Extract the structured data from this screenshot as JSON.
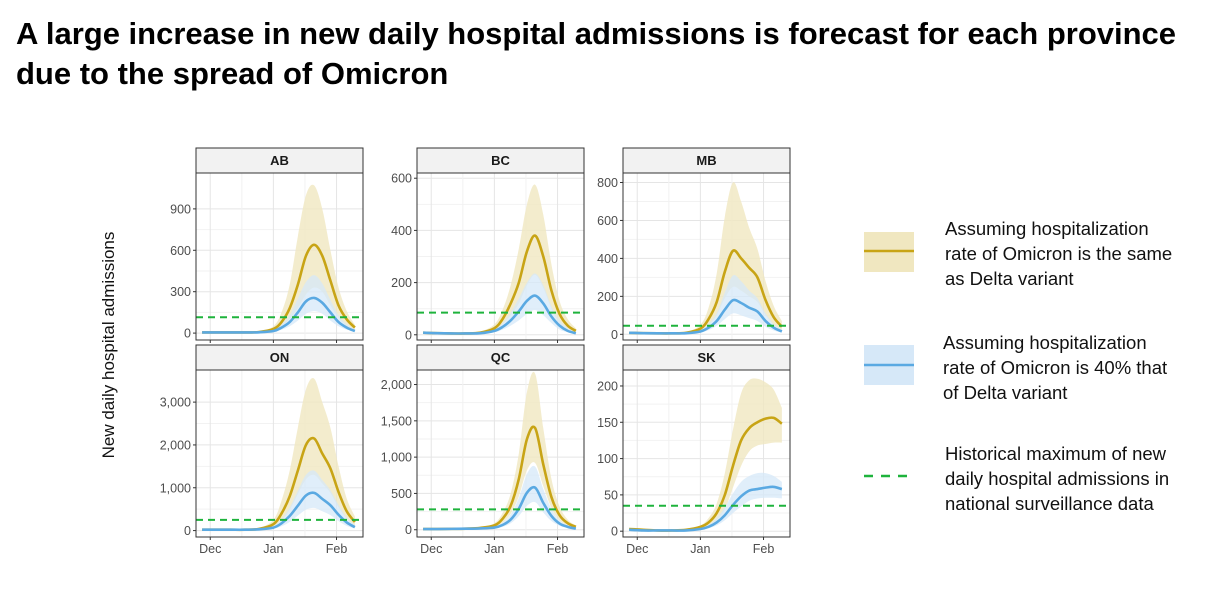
{
  "title": "A large increase in new daily hospital admissions is forecast for each province due to the spread of Omicron",
  "chart_data": {
    "type": "line",
    "ylabel": "New daily hospital admissions",
    "xlabel": "",
    "x_ticks": [
      {
        "date": "2021-12-01",
        "label": "Dec"
      },
      {
        "date": "2022-01-01",
        "label": "Jan"
      },
      {
        "date": "2022-02-01",
        "label": "Feb"
      }
    ],
    "xlim": [
      "2021-11-24",
      "2022-02-14"
    ],
    "grid": true,
    "legend_position": "right",
    "colors": {
      "same_as_delta": "#c8a415",
      "same_as_delta_band": "#f0e7c0",
      "forty_pct": "#5aa9e2",
      "forty_pct_band": "#d6e8f8",
      "historical_max": "#1eb33c"
    },
    "legend": [
      {
        "key": "same_as_delta",
        "label": "Assuming hospitalization rate of Omicron is the same as Delta variant"
      },
      {
        "key": "forty_pct",
        "label": "Assuming hospitalization rate of Omicron is 40% that of Delta variant"
      },
      {
        "key": "historical_max",
        "label": "Historical maximum of new daily hospital admissions in national surveillance data"
      }
    ],
    "x": [
      "2021-11-27",
      "2021-12-04",
      "2021-12-11",
      "2021-12-18",
      "2021-12-25",
      "2022-01-01",
      "2022-01-05",
      "2022-01-09",
      "2022-01-13",
      "2022-01-17",
      "2022-01-21",
      "2022-01-25",
      "2022-01-29",
      "2022-02-02",
      "2022-02-06",
      "2022-02-10"
    ],
    "panels": [
      {
        "name": "AB",
        "ylim": [
          -50,
          1160
        ],
        "yticks": [
          0,
          300,
          600,
          900
        ],
        "ytick_labels": [
          "0",
          "300",
          "600",
          "900"
        ],
        "historical_max": 115,
        "same_as_delta": {
          "median": [
            5,
            5,
            5,
            5,
            8,
            30,
            80,
            180,
            350,
            560,
            640,
            560,
            380,
            200,
            100,
            40
          ],
          "lower": [
            5,
            5,
            5,
            4,
            6,
            20,
            50,
            100,
            180,
            280,
            330,
            300,
            200,
            110,
            50,
            20
          ],
          "upper": [
            5,
            5,
            5,
            6,
            12,
            50,
            150,
            350,
            700,
            1000,
            1070,
            900,
            600,
            330,
            160,
            60
          ]
        },
        "forty_pct": {
          "median": [
            5,
            5,
            5,
            5,
            6,
            15,
            40,
            80,
            150,
            230,
            255,
            220,
            150,
            80,
            40,
            15
          ],
          "lower": [
            5,
            5,
            5,
            4,
            5,
            10,
            25,
            50,
            90,
            140,
            160,
            140,
            90,
            50,
            25,
            10
          ],
          "upper": [
            5,
            5,
            5,
            6,
            8,
            25,
            65,
            130,
            250,
            370,
            420,
            360,
            240,
            130,
            65,
            25
          ]
        }
      },
      {
        "name": "BC",
        "ylim": [
          -20,
          620
        ],
        "yticks": [
          0,
          200,
          400,
          600
        ],
        "ytick_labels": [
          "0",
          "200",
          "400",
          "600"
        ],
        "historical_max": 85,
        "same_as_delta": {
          "median": [
            8,
            6,
            5,
            5,
            8,
            25,
            60,
            120,
            200,
            320,
            380,
            300,
            170,
            80,
            35,
            15
          ],
          "lower": [
            8,
            6,
            5,
            4,
            6,
            15,
            40,
            75,
            120,
            190,
            230,
            180,
            100,
            45,
            20,
            8
          ],
          "upper": [
            8,
            6,
            5,
            6,
            12,
            40,
            95,
            190,
            330,
            500,
            575,
            460,
            270,
            130,
            60,
            25
          ]
        },
        "forty_pct": {
          "median": [
            8,
            6,
            5,
            5,
            6,
            15,
            30,
            55,
            90,
            130,
            150,
            120,
            70,
            35,
            15,
            6
          ],
          "lower": [
            8,
            6,
            5,
            4,
            5,
            10,
            20,
            35,
            55,
            80,
            95,
            75,
            45,
            20,
            10,
            4
          ],
          "upper": [
            8,
            6,
            5,
            6,
            8,
            22,
            45,
            85,
            140,
            200,
            235,
            190,
            110,
            55,
            25,
            10
          ]
        }
      },
      {
        "name": "MB",
        "ylim": [
          -30,
          850
        ],
        "yticks": [
          0,
          200,
          400,
          600,
          800
        ],
        "ytick_labels": [
          "0",
          "200",
          "400",
          "600",
          "800"
        ],
        "historical_max": 45,
        "same_as_delta": {
          "median": [
            8,
            6,
            5,
            5,
            8,
            30,
            80,
            170,
            330,
            440,
            400,
            350,
            300,
            180,
            90,
            40
          ],
          "lower": [
            8,
            6,
            5,
            4,
            6,
            20,
            50,
            100,
            190,
            250,
            230,
            200,
            170,
            100,
            50,
            20
          ],
          "upper": [
            8,
            6,
            5,
            6,
            12,
            50,
            140,
            320,
            620,
            800,
            700,
            560,
            450,
            280,
            150,
            70
          ]
        },
        "forty_pct": {
          "median": [
            8,
            6,
            5,
            5,
            6,
            15,
            35,
            70,
            130,
            180,
            165,
            140,
            120,
            70,
            35,
            15
          ],
          "lower": [
            8,
            6,
            5,
            4,
            5,
            10,
            22,
            45,
            80,
            110,
            100,
            85,
            70,
            40,
            20,
            8
          ],
          "upper": [
            8,
            6,
            5,
            6,
            8,
            25,
            55,
            110,
            220,
            310,
            280,
            230,
            190,
            110,
            55,
            25
          ]
        }
      },
      {
        "name": "ON",
        "ylim": [
          -150,
          3750
        ],
        "yticks": [
          0,
          1000,
          2000,
          3000
        ],
        "ytick_labels": [
          "0",
          "1,000",
          "2,000",
          "3,000"
        ],
        "historical_max": 250,
        "same_as_delta": {
          "median": [
            20,
            20,
            20,
            20,
            40,
            150,
            400,
            800,
            1400,
            2000,
            2150,
            1800,
            1450,
            900,
            450,
            200
          ],
          "lower": [
            20,
            20,
            20,
            18,
            30,
            90,
            240,
            480,
            850,
            1200,
            1300,
            1100,
            880,
            540,
            270,
            120
          ],
          "upper": [
            20,
            20,
            20,
            25,
            60,
            250,
            700,
            1400,
            2400,
            3300,
            3550,
            3000,
            2400,
            1500,
            750,
            330
          ]
        },
        "forty_pct": {
          "median": [
            20,
            20,
            20,
            20,
            30,
            70,
            170,
            340,
            580,
            820,
            880,
            740,
            590,
            370,
            190,
            80
          ],
          "lower": [
            20,
            20,
            20,
            18,
            25,
            45,
            100,
            200,
            350,
            490,
            530,
            450,
            360,
            220,
            110,
            50
          ],
          "upper": [
            20,
            20,
            20,
            25,
            40,
            110,
            270,
            540,
            930,
            1300,
            1400,
            1180,
            940,
            600,
            300,
            130
          ]
        }
      },
      {
        "name": "QC",
        "ylim": [
          -100,
          2200
        ],
        "yticks": [
          0,
          500,
          1000,
          1500,
          2000
        ],
        "ytick_labels": [
          "0",
          "500",
          "1,000",
          "1,500",
          "2,000"
        ],
        "historical_max": 280,
        "same_as_delta": {
          "median": [
            10,
            10,
            12,
            15,
            25,
            60,
            150,
            330,
            700,
            1250,
            1400,
            900,
            450,
            200,
            90,
            40
          ],
          "lower": [
            10,
            10,
            10,
            12,
            20,
            40,
            100,
            220,
            460,
            820,
            920,
            600,
            300,
            130,
            60,
            25
          ],
          "upper": [
            10,
            10,
            15,
            20,
            35,
            90,
            230,
            500,
            1050,
            1900,
            2150,
            1400,
            700,
            320,
            140,
            60
          ]
        },
        "forty_pct": {
          "median": [
            10,
            10,
            12,
            14,
            18,
            30,
            65,
            140,
            290,
            510,
            580,
            370,
            190,
            85,
            40,
            15
          ],
          "lower": [
            10,
            10,
            10,
            12,
            15,
            20,
            40,
            90,
            190,
            330,
            380,
            240,
            120,
            55,
            25,
            10
          ],
          "upper": [
            10,
            10,
            14,
            16,
            22,
            45,
            100,
            210,
            440,
            770,
            870,
            560,
            290,
            130,
            60,
            25
          ]
        }
      },
      {
        "name": "SK",
        "ylim": [
          -8,
          222
        ],
        "yticks": [
          0,
          50,
          100,
          150,
          200
        ],
        "ytick_labels": [
          "0",
          "50",
          "100",
          "150",
          "200"
        ],
        "historical_max": 35,
        "same_as_delta": {
          "median": [
            3,
            2,
            1,
            1,
            2,
            6,
            12,
            25,
            50,
            90,
            125,
            142,
            150,
            155,
            156,
            148
          ],
          "lower": [
            3,
            2,
            1,
            1,
            2,
            4,
            8,
            15,
            30,
            60,
            90,
            110,
            118,
            120,
            122,
            122
          ],
          "upper": [
            3,
            2,
            1,
            1,
            3,
            8,
            18,
            38,
            80,
            140,
            190,
            208,
            210,
            205,
            195,
            170
          ]
        },
        "forty_pct": {
          "median": [
            2,
            1,
            1,
            1,
            1,
            3,
            6,
            12,
            22,
            36,
            48,
            56,
            58,
            60,
            61,
            58
          ],
          "lower": [
            2,
            1,
            1,
            1,
            1,
            2,
            4,
            8,
            15,
            25,
            34,
            42,
            45,
            46,
            46,
            45
          ],
          "upper": [
            2,
            1,
            1,
            1,
            2,
            4,
            9,
            18,
            33,
            52,
            68,
            76,
            80,
            80,
            76,
            68
          ]
        }
      }
    ]
  }
}
